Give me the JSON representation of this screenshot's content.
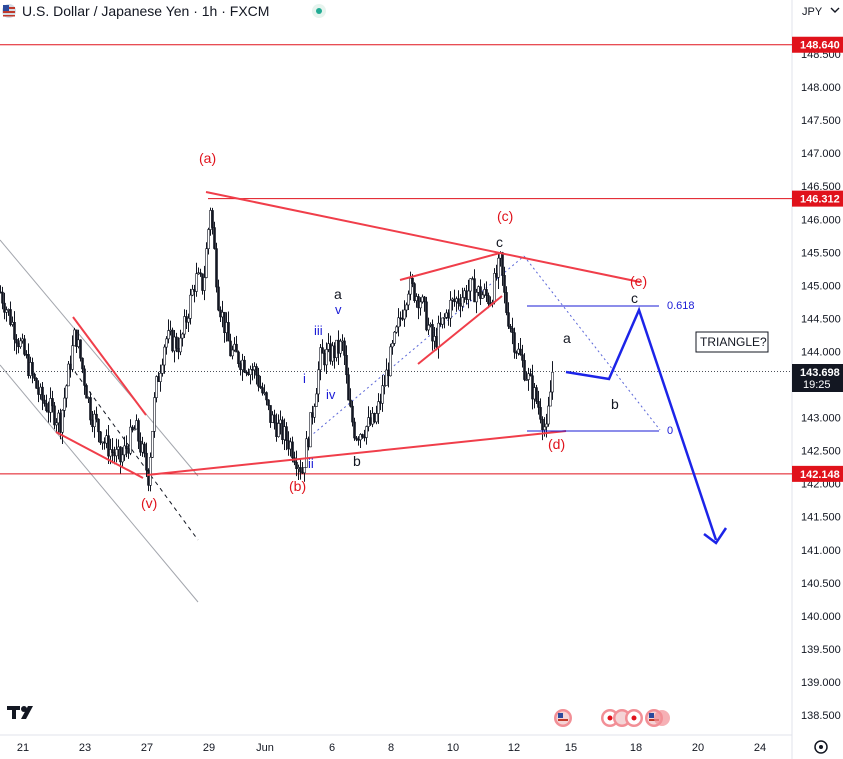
{
  "header": {
    "title": "U.S. Dollar / Japanese Yen · 1h · FXCM",
    "currency": "JPY",
    "icon": "us-flag-icon"
  },
  "chart_data": {
    "type": "candlestick",
    "symbol": "USDJPY",
    "timeframe": "1h",
    "price_axis": {
      "range": [
        138.2,
        148.8
      ],
      "ticks": [
        "148.500",
        "148.000",
        "147.500",
        "147.000",
        "146.500",
        "146.000",
        "145.500",
        "145.000",
        "144.500",
        "144.000",
        "143.500",
        "143.000",
        "142.500",
        "142.000",
        "141.500",
        "141.000",
        "140.500",
        "140.000",
        "139.500",
        "139.000",
        "138.500"
      ]
    },
    "time_axis": {
      "ticks": [
        "21",
        "23",
        "27",
        "29",
        "Jun",
        "6",
        "8",
        "10",
        "12",
        "15",
        "18",
        "20",
        "24"
      ]
    },
    "horizontal_levels": [
      {
        "label": "148.640",
        "value": 148.64,
        "color": "#e0121b"
      },
      {
        "label": "146.312",
        "value": 146.312,
        "color": "#e0121b"
      },
      {
        "label": "142.148",
        "value": 142.148,
        "color": "#e0121b"
      }
    ],
    "last_price": {
      "value": "143.698",
      "countdown": "19:25",
      "color": "#131722"
    },
    "price_path_anchors": [
      [
        0,
        144.9
      ],
      [
        20,
        144.1
      ],
      [
        40,
        143.3
      ],
      [
        60,
        142.95
      ],
      [
        75,
        144.3
      ],
      [
        90,
        143.1
      ],
      [
        105,
        142.6
      ],
      [
        120,
        142.35
      ],
      [
        135,
        142.85
      ],
      [
        148,
        142.12
      ],
      [
        155,
        143.4
      ],
      [
        165,
        144.2
      ],
      [
        180,
        144.1
      ],
      [
        195,
        145.1
      ],
      [
        203,
        145.0
      ],
      [
        210,
        146.2
      ],
      [
        218,
        144.8
      ],
      [
        230,
        144.0
      ],
      [
        255,
        143.7
      ],
      [
        270,
        143.0
      ],
      [
        290,
        142.6
      ],
      [
        302,
        142.2
      ],
      [
        310,
        142.9
      ],
      [
        320,
        143.9
      ],
      [
        335,
        144.0
      ],
      [
        343,
        144.1
      ],
      [
        348,
        143.2
      ],
      [
        355,
        142.75
      ],
      [
        375,
        142.95
      ],
      [
        390,
        143.9
      ],
      [
        408,
        145.0
      ],
      [
        420,
        144.8
      ],
      [
        433,
        144.1
      ],
      [
        450,
        144.7
      ],
      [
        470,
        144.95
      ],
      [
        490,
        144.8
      ],
      [
        500,
        145.35
      ],
      [
        505,
        144.7
      ],
      [
        515,
        144.1
      ],
      [
        530,
        143.5
      ],
      [
        540,
        143.1
      ],
      [
        546,
        142.75
      ],
      [
        552,
        143.7
      ]
    ],
    "annotations": {
      "red_labels": [
        "(a)",
        "(b)",
        "(c)",
        "(d)",
        "(e)",
        "(v)"
      ],
      "black_labels": [
        "a",
        "b",
        "c",
        "a",
        "b",
        "c"
      ],
      "blue_labels": [
        "i",
        "ii",
        "iii",
        "iv",
        "v"
      ],
      "fib_labels": [
        "0.618",
        "0"
      ],
      "note": "TRIANGLE?"
    }
  },
  "footer": {
    "logo": "tv-logo-icon",
    "event_icons": [
      "us-flag-icon",
      "jp-flag-icon",
      "us-flag-icon"
    ],
    "settings_icon": "gear-icon"
  }
}
